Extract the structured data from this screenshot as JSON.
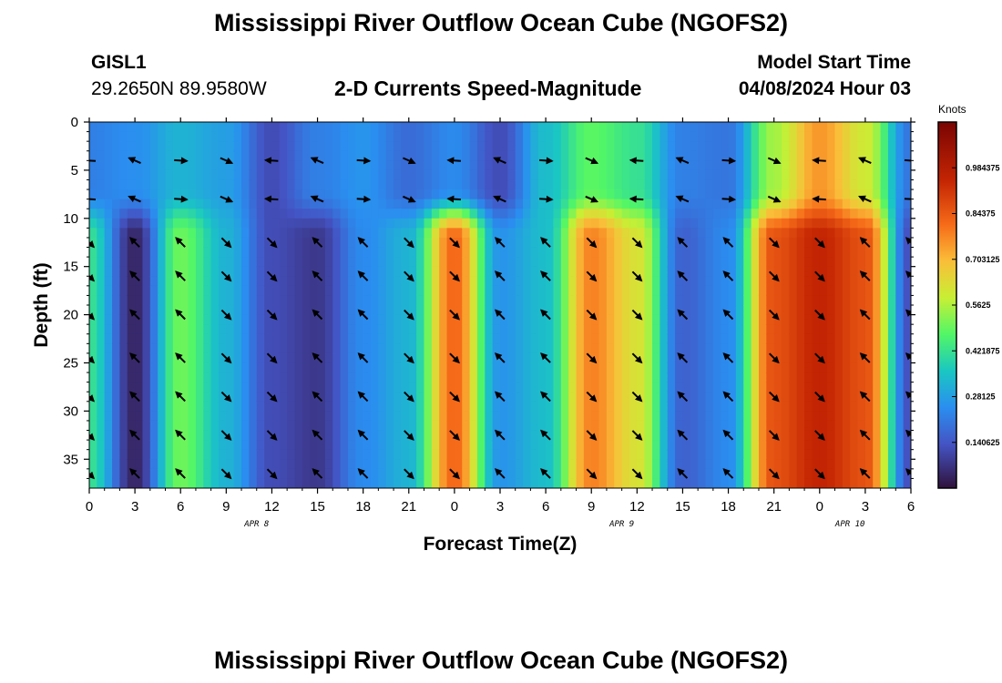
{
  "header": {
    "title": "Mississippi River Outflow Ocean Cube (NGOFS2)",
    "station": "GISL1",
    "coords": "29.2650N  89.9580W",
    "subtitle": "2-D Currents Speed-Magnitude",
    "model_label": "Model Start Time",
    "model_time": "04/08/2024 Hour 03"
  },
  "footer": {
    "title": "Mississippi River Outflow Ocean Cube (NGOFS2)"
  },
  "chart_data": {
    "type": "heatmap",
    "title": "2-D Currents Speed-Magnitude",
    "xlabel": "Forecast Time(Z)",
    "ylabel": "Depth (ft)",
    "x_hours": [
      0,
      3,
      6,
      9,
      12,
      15,
      18,
      21,
      24,
      27,
      30,
      33,
      36,
      39,
      42,
      45,
      48,
      51,
      54
    ],
    "x_tick_labels": [
      "0",
      "3",
      "6",
      "9",
      "12",
      "15",
      "18",
      "21",
      "0",
      "3",
      "6",
      "9",
      "12",
      "15",
      "18",
      "21",
      "0",
      "3",
      "6"
    ],
    "date_labels": [
      {
        "hour": 11,
        "label": "APR 8"
      },
      {
        "hour": 35,
        "label": "APR 9"
      },
      {
        "hour": 50,
        "label": "APR 10"
      }
    ],
    "xlim": [
      0,
      54
    ],
    "ylim": [
      38,
      0
    ],
    "y_ticks": [
      0,
      5,
      10,
      15,
      20,
      25,
      30,
      35
    ],
    "y_tick_labels": [
      "0",
      "5",
      "10",
      "15",
      "20",
      "25",
      "30",
      "35"
    ],
    "colorbar": {
      "label": "Knots",
      "range": [
        0,
        1.125
      ],
      "ticks": [
        0.140625,
        0.28125,
        0.421875,
        0.5625,
        0.703125,
        0.84375,
        0.984375
      ],
      "tick_labels": [
        "0.140625",
        "0.28125",
        "0.421875",
        "0.5625",
        "0.703125",
        "0.84375",
        "0.984375"
      ]
    },
    "speed_profile_upper": {
      "note": "Approximate surface layer (0-8 ft) speed in knots by forecast hour",
      "hours": [
        0,
        3,
        6,
        9,
        12,
        15,
        18,
        21,
        24,
        27,
        30,
        33,
        36,
        39,
        42,
        45,
        48,
        51,
        54
      ],
      "values": [
        0.22,
        0.25,
        0.32,
        0.28,
        0.12,
        0.22,
        0.26,
        0.18,
        0.24,
        0.12,
        0.34,
        0.48,
        0.42,
        0.22,
        0.2,
        0.55,
        0.75,
        0.6,
        0.2
      ]
    },
    "speed_profile_lower": {
      "note": "Approximate lower layer (10-38 ft) speed in knots by forecast hour",
      "hours": [
        0,
        3,
        6,
        9,
        12,
        15,
        18,
        21,
        24,
        27,
        30,
        33,
        36,
        39,
        42,
        45,
        48,
        51,
        54
      ],
      "values": [
        0.42,
        0.04,
        0.5,
        0.32,
        0.12,
        0.08,
        0.24,
        0.32,
        0.82,
        0.26,
        0.34,
        0.78,
        0.62,
        0.16,
        0.24,
        0.86,
        0.95,
        0.86,
        0.12
      ]
    },
    "vector_depths_ft": [
      4,
      8,
      12.5,
      16,
      20,
      24.5,
      28.5,
      32.5,
      36.5
    ],
    "vector_hours": [
      0,
      3,
      6,
      9,
      12,
      15,
      18,
      21,
      24,
      27,
      30,
      33,
      36,
      39,
      42,
      45,
      48,
      51,
      54
    ]
  }
}
